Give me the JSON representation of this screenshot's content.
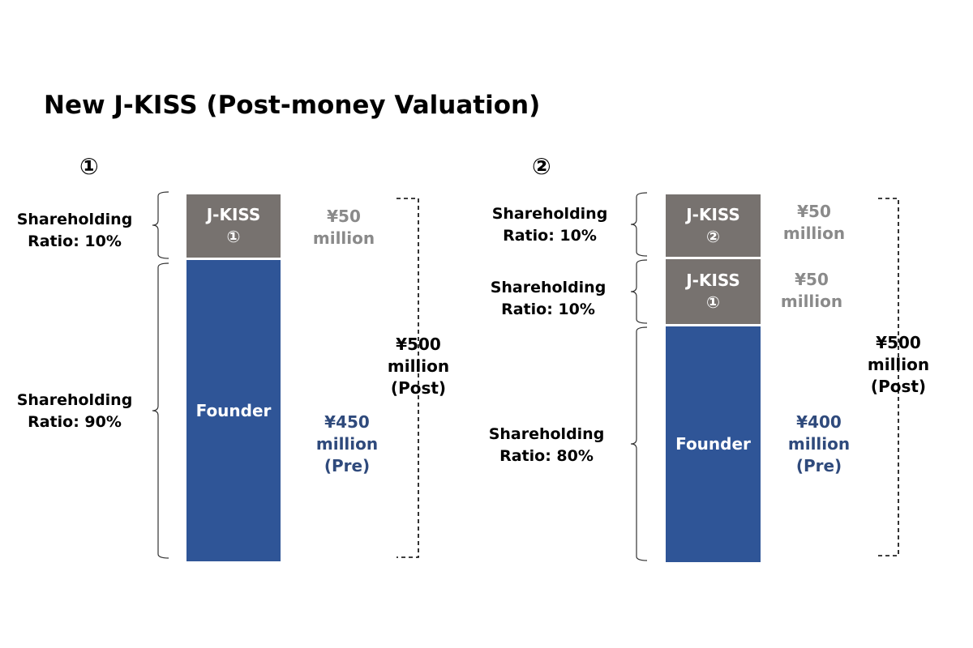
{
  "title": "New J-KISS (Post-money Valuation)",
  "panels": [
    {
      "number": "①",
      "segments": [
        {
          "label": "J-KISS",
          "sublabel": "①",
          "ratio": "Shareholding\nRatio: 10%",
          "amount": "¥50\nmillion",
          "share_pct": 10
        },
        {
          "label": "Founder",
          "sublabel": "",
          "ratio": "Shareholding\nRatio: 90%",
          "amount": "¥450\nmillion\n(Pre)",
          "share_pct": 90
        }
      ],
      "total": "¥500\nmillion\n(Post)"
    },
    {
      "number": "②",
      "segments": [
        {
          "label": "J-KISS",
          "sublabel": "②",
          "ratio": "Shareholding\nRatio: 10%",
          "amount": "¥50\nmillion",
          "share_pct": 10
        },
        {
          "label": "J-KISS",
          "sublabel": "①",
          "ratio": "Shareholding\nRatio: 10%",
          "amount": "¥50\nmillion",
          "share_pct": 10
        },
        {
          "label": "Founder",
          "sublabel": "",
          "ratio": "Shareholding\nRatio: 80%",
          "amount": "¥400\nmillion\n(Pre)",
          "share_pct": 80
        }
      ],
      "total": "¥500\nmillion\n(Post)"
    }
  ],
  "colors": {
    "jkiss": "#77726f",
    "founder": "#2f5597",
    "jkiss_amount": "#8a8a8a",
    "founder_amount": "#2f4a7c"
  }
}
